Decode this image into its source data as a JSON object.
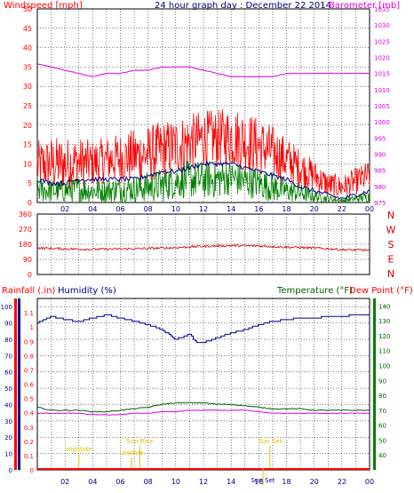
{
  "header": {
    "left_label": "Windspeed [mph]",
    "title": "24 hour graph day : December 22 2014",
    "right_label": "Barometer [mb]"
  },
  "bottom_header": {
    "rainfall": "Rainfall (.in)",
    "humidity": "Humidity (%)",
    "temperature": "Temperature (°F)",
    "dewpoint": "Dew Point (°F)"
  },
  "colors": {
    "wind_speed": "#ff0000",
    "wind_gust_avg": "#000080",
    "wind_avg": "#008000",
    "barometer": "#e000e0",
    "direction": "#d00000",
    "humidity": "#000090",
    "temperature": "#006000",
    "dewpoint": "#e000e0",
    "rain": "#ff0000",
    "annotation": "#e0c000",
    "grid": "#000000"
  },
  "chart_data": [
    {
      "type": "line",
      "name": "wind-barometer",
      "x_ticks": [
        "02",
        "04",
        "06",
        "08",
        "10",
        "12",
        "14",
        "16",
        "18",
        "20",
        "22",
        "00"
      ],
      "left_axis": {
        "label": "Windspeed [mph]",
        "ylim": [
          0,
          50
        ],
        "ticks": [
          0,
          5,
          10,
          15,
          20,
          25,
          30,
          35,
          40,
          45,
          50
        ]
      },
      "right_axis": {
        "label": "Barometer [mb]",
        "ylim": [
          975,
          1035
        ],
        "ticks": [
          975,
          980,
          985,
          990,
          995,
          1000,
          1005,
          1010,
          1015,
          1020,
          1025,
          1030,
          1035
        ]
      },
      "series": [
        {
          "name": "Windspeed",
          "axis": "left",
          "x": [
            0,
            1,
            2,
            3,
            4,
            5,
            6,
            7,
            8,
            9,
            10,
            11,
            12,
            13,
            14,
            15,
            16,
            17,
            18,
            19,
            20,
            21,
            22,
            23,
            24
          ],
          "min": [
            3,
            3,
            3,
            4,
            4,
            5,
            5,
            5,
            5,
            6,
            7,
            8,
            9,
            9,
            9,
            8,
            7,
            6,
            5,
            4,
            3,
            1,
            1,
            2,
            3
          ],
          "max": [
            16,
            17,
            17,
            17,
            16,
            17,
            18,
            19,
            20,
            21,
            22,
            23,
            24,
            24,
            25,
            24,
            22,
            20,
            17,
            14,
            11,
            8,
            7,
            9,
            11
          ]
        },
        {
          "axis": "left",
          "x": [
            0,
            1,
            2,
            3,
            4,
            5,
            6,
            7,
            8,
            9,
            10,
            11,
            12,
            13,
            14,
            15,
            16,
            17,
            18,
            19,
            20,
            21,
            22,
            23,
            24
          ],
          "y": [
            6,
            5,
            5,
            6,
            6,
            6,
            6,
            6,
            7,
            8,
            8,
            9,
            10,
            10,
            10,
            9,
            8,
            7,
            6,
            4,
            3,
            2,
            1,
            2,
            3
          ]
        },
        {
          "axis": "left",
          "x": [
            0,
            1,
            2,
            3,
            4,
            5,
            6,
            7,
            8,
            9,
            10,
            11,
            12,
            13,
            14,
            15,
            16,
            17,
            18,
            19,
            20,
            21,
            22,
            23,
            24
          ],
          "min": [
            0,
            0,
            0,
            0,
            0,
            0,
            0,
            0,
            0,
            0,
            1,
            1,
            1,
            1,
            2,
            1,
            1,
            0,
            0,
            0,
            0,
            0,
            0,
            0,
            0
          ],
          "max": [
            7,
            6,
            6,
            7,
            6,
            6,
            7,
            7,
            8,
            9,
            10,
            11,
            11,
            11,
            11,
            10,
            9,
            8,
            6,
            5,
            3,
            2,
            1,
            2,
            3
          ]
        },
        {
          "name": "Barometer",
          "axis": "right",
          "x": [
            0,
            1,
            2,
            3,
            4,
            5,
            6,
            7,
            8,
            9,
            10,
            11,
            12,
            13,
            14,
            15,
            16,
            17,
            18,
            19,
            20,
            21,
            22,
            23,
            24
          ],
          "y": [
            1018,
            1017,
            1016,
            1015,
            1014,
            1015,
            1015,
            1016,
            1016,
            1017,
            1017,
            1017,
            1016,
            1015,
            1014,
            1014,
            1014,
            1014,
            1015,
            1015,
            1015,
            1015,
            1015,
            1015,
            1015
          ]
        }
      ]
    },
    {
      "type": "line",
      "name": "wind-direction",
      "x_ticks": [
        "02",
        "04",
        "06",
        "08",
        "10",
        "12",
        "14",
        "16",
        "18",
        "20",
        "22",
        "00"
      ],
      "left_axis": {
        "ylim": [
          0,
          360
        ],
        "ticks": [
          0,
          90,
          180,
          270,
          360
        ]
      },
      "right_labels": [
        "N",
        "W",
        "S",
        "E",
        "N"
      ],
      "series": [
        {
          "name": "Direction",
          "x": [
            0,
            2,
            4,
            6,
            8,
            10,
            12,
            14,
            16,
            18,
            20,
            22,
            24
          ],
          "y": [
            158,
            153,
            150,
            152,
            155,
            160,
            168,
            172,
            170,
            163,
            158,
            148,
            145
          ]
        }
      ]
    },
    {
      "type": "line",
      "name": "humidity-temperature-rain",
      "x_ticks": [
        "02",
        "04",
        "06",
        "08",
        "10",
        "12",
        "14",
        "16",
        "18",
        "20",
        "22",
        "00"
      ],
      "rain_axis": {
        "label": "Rainfall (.in)",
        "ylim": [
          0,
          1.2
        ],
        "ticks": [
          0,
          0.1,
          0.2,
          0.3,
          0.4,
          0.5,
          0.6,
          0.7,
          0.8,
          0.9,
          1,
          1.1
        ]
      },
      "humidity_axis": {
        "label": "Humidity (%)",
        "ylim": [
          0,
          105
        ],
        "ticks": [
          0,
          10,
          20,
          30,
          40,
          50,
          60,
          70,
          80,
          90,
          100
        ]
      },
      "temp_axis": {
        "label": "Temperature (°F)",
        "ylim": [
          30,
          145
        ],
        "ticks": [
          40,
          50,
          60,
          70,
          80,
          90,
          100,
          110,
          120,
          130,
          140
        ]
      },
      "series": [
        {
          "name": "Humidity",
          "axis": "humidity",
          "x": [
            0,
            0.5,
            1,
            2,
            3,
            4,
            5,
            6,
            7,
            8,
            9,
            10,
            11,
            11.5,
            12,
            13,
            14,
            15,
            16,
            17,
            18,
            19,
            20,
            21,
            22,
            23,
            24
          ],
          "y": [
            90,
            92,
            94,
            92,
            91,
            93,
            95,
            93,
            91,
            89,
            86,
            80,
            83,
            78,
            78,
            81,
            84,
            86,
            89,
            91,
            92,
            93,
            93,
            94,
            94,
            95,
            95
          ]
        },
        {
          "name": "Temperature",
          "axis": "temp",
          "x": [
            0,
            1,
            2,
            3,
            4,
            5,
            6,
            7,
            8,
            9,
            10,
            11,
            12,
            13,
            14,
            15,
            16,
            17,
            18,
            19,
            20,
            21,
            22,
            23,
            24
          ],
          "y": [
            72,
            70,
            70,
            70,
            69,
            69,
            70,
            71,
            72,
            74,
            75,
            75,
            75,
            74,
            74,
            73,
            72,
            71,
            71,
            71,
            70,
            70,
            70,
            70,
            70
          ]
        },
        {
          "name": "Dew Point",
          "axis": "temp",
          "x": [
            0,
            1,
            2,
            3,
            4,
            5,
            6,
            7,
            8,
            9,
            10,
            11,
            12,
            13,
            14,
            15,
            16,
            17,
            18,
            19,
            20,
            21,
            22,
            23,
            24
          ],
          "y": [
            68,
            68,
            68,
            68,
            67,
            67,
            67,
            68,
            68,
            69,
            69,
            70,
            70,
            70,
            70,
            70,
            69,
            68,
            68,
            68,
            68,
            68,
            68,
            68,
            68
          ]
        },
        {
          "name": "Rainfall",
          "axis": "rain",
          "x": [
            0,
            24
          ],
          "y": [
            0,
            0
          ]
        }
      ],
      "annotations": [
        {
          "label": "Hightide",
          "x": 3
        },
        {
          "label": "Sun Rise",
          "x": 7.4
        },
        {
          "label": "Lowtide",
          "x": 6.8
        },
        {
          "label": "Sun Set",
          "x": 16.8
        },
        {
          "label": "Sun Set",
          "x": 16.3
        }
      ]
    }
  ]
}
